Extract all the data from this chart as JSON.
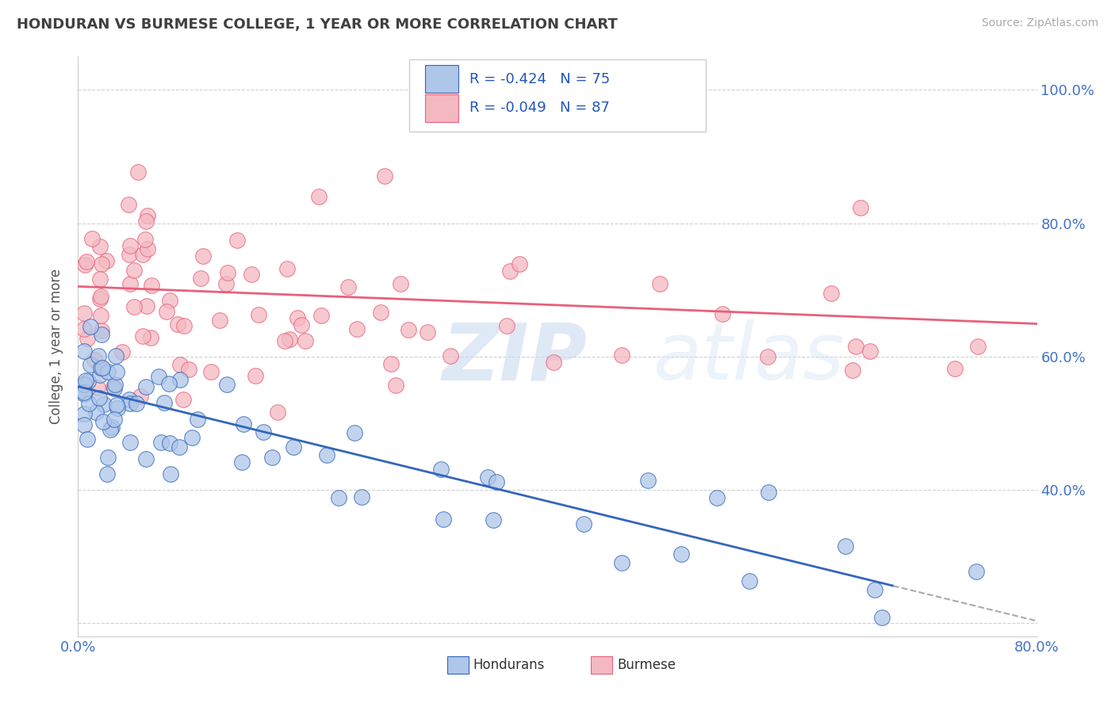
{
  "title": "HONDURAN VS BURMESE COLLEGE, 1 YEAR OR MORE CORRELATION CHART",
  "source": "Source: ZipAtlas.com",
  "ylabel": "College, 1 year or more",
  "xlim": [
    0.0,
    0.8
  ],
  "ylim": [
    0.18,
    1.05
  ],
  "xticks": [
    0.0,
    0.1,
    0.2,
    0.3,
    0.4,
    0.5,
    0.6,
    0.7,
    0.8
  ],
  "xticklabels": [
    "0.0%",
    "",
    "",
    "",
    "",
    "",
    "",
    "",
    "80.0%"
  ],
  "yticks": [
    0.2,
    0.4,
    0.6,
    0.8,
    1.0
  ],
  "yticklabels_right": [
    "",
    "40.0%",
    "60.0%",
    "80.0%",
    "100.0%"
  ],
  "hondurans_color": "#aec6e8",
  "burmese_color": "#f4b8c1",
  "hondurans_trend_color": "#3366bb",
  "burmese_trend_color": "#e8607a",
  "legend_R1": "-0.424",
  "legend_N1": "75",
  "legend_R2": "-0.049",
  "legend_N2": "87",
  "watermark_zip": "ZIP",
  "watermark_atlas": "atlas",
  "background_color": "#ffffff",
  "grid_color": "#cccccc",
  "title_color": "#404040",
  "axis_label_color": "#4472c4",
  "hon_intercept": 0.555,
  "hon_slope": -0.44,
  "bur_intercept": 0.705,
  "bur_slope": -0.07,
  "hon_trend_end_solid": 0.68,
  "hon_trend_end_dashed": 0.8
}
